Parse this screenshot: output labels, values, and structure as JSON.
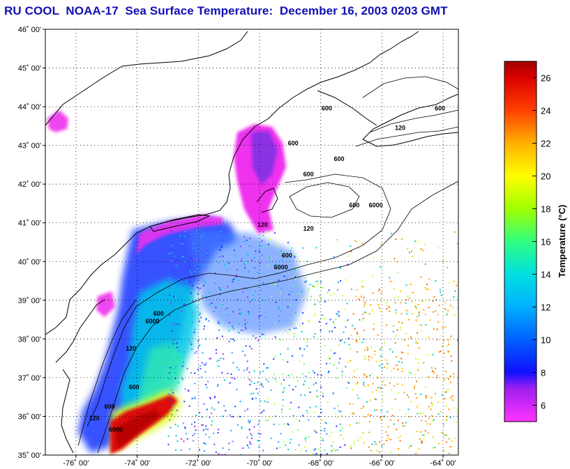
{
  "title": "RU COOL  NOAA-17  Sea Surface Temperature:  December 16, 2003 0203 GMT",
  "map": {
    "lat_ticks": [
      {
        "value": 46,
        "label": "46˚ 00'"
      },
      {
        "value": 45,
        "label": "45˚ 00'"
      },
      {
        "value": 44,
        "label": "44˚ 00'"
      },
      {
        "value": 43,
        "label": "43˚ 00'"
      },
      {
        "value": 42,
        "label": "42˚ 00'"
      },
      {
        "value": 41,
        "label": "41˚ 00'"
      },
      {
        "value": 40,
        "label": "40˚ 00'"
      },
      {
        "value": 39,
        "label": "39˚ 00'"
      },
      {
        "value": 38,
        "label": "38˚ 00'"
      },
      {
        "value": 37,
        "label": "37˚ 00'"
      },
      {
        "value": 36,
        "label": "36˚ 00'"
      },
      {
        "value": 35,
        "label": "35˚ 00'"
      }
    ],
    "lon_ticks": [
      {
        "value": -76,
        "label": "-76˚ 00'"
      },
      {
        "value": -74,
        "label": "-74˚ 00'"
      },
      {
        "value": -72,
        "label": "-72˚ 00'"
      },
      {
        "value": -70,
        "label": "-70˚ 00'"
      },
      {
        "value": -68,
        "label": "-68˚ 00'"
      },
      {
        "value": -66,
        "label": "-66˚ 00'"
      },
      {
        "value": -64,
        "label": "-64˚ 00'"
      }
    ],
    "lat_range": [
      35,
      46
    ],
    "lon_range": [
      -77,
      -63.5
    ],
    "contour_labels": [
      {
        "text": "600",
        "lon": -67.8,
        "lat": 43.9
      },
      {
        "text": "600",
        "lon": -64.1,
        "lat": 43.9
      },
      {
        "text": "600",
        "lon": -68.9,
        "lat": 43.0
      },
      {
        "text": "600",
        "lon": -67.4,
        "lat": 42.6
      },
      {
        "text": "600",
        "lon": -68.4,
        "lat": 42.2
      },
      {
        "text": "600",
        "lon": -66.9,
        "lat": 41.4
      },
      {
        "text": "6000",
        "lon": -66.2,
        "lat": 41.4
      },
      {
        "text": "600",
        "lon": -69.1,
        "lat": 40.1
      },
      {
        "text": "6000",
        "lon": -69.3,
        "lat": 39.8
      },
      {
        "text": "120",
        "lon": -68.4,
        "lat": 40.8
      },
      {
        "text": "120",
        "lon": -69.9,
        "lat": 40.9
      },
      {
        "text": "120",
        "lon": -65.4,
        "lat": 43.4
      },
      {
        "text": "600",
        "lon": -73.3,
        "lat": 38.6
      },
      {
        "text": "6000",
        "lon": -73.5,
        "lat": 38.4
      },
      {
        "text": "120",
        "lon": -74.2,
        "lat": 37.7
      },
      {
        "text": "600",
        "lon": -74.1,
        "lat": 36.7
      },
      {
        "text": "600",
        "lon": -74.9,
        "lat": 36.2
      },
      {
        "text": "6000",
        "lon": -74.7,
        "lat": 35.6
      },
      {
        "text": "120",
        "lon": -75.4,
        "lat": 35.9
      }
    ]
  },
  "colorbar": {
    "title": "Temperature (°C)",
    "range": [
      5,
      27
    ],
    "ticks": [
      {
        "value": 26,
        "label": "26"
      },
      {
        "value": 24,
        "label": "24"
      },
      {
        "value": 22,
        "label": "22"
      },
      {
        "value": 20,
        "label": "20"
      },
      {
        "value": 18,
        "label": "18"
      },
      {
        "value": 16,
        "label": "16"
      },
      {
        "value": 14,
        "label": "14"
      },
      {
        "value": 12,
        "label": "12"
      },
      {
        "value": 10,
        "label": "10"
      },
      {
        "value": 8,
        "label": "8"
      },
      {
        "value": 6,
        "label": "6"
      }
    ],
    "stops": [
      {
        "value": 5,
        "color": "#ff33ff"
      },
      {
        "value": 7,
        "color": "#a020f0"
      },
      {
        "value": 8,
        "color": "#1010ff"
      },
      {
        "value": 10,
        "color": "#0060ff"
      },
      {
        "value": 12,
        "color": "#00b0ff"
      },
      {
        "value": 14,
        "color": "#00e0e0"
      },
      {
        "value": 16,
        "color": "#30ff80"
      },
      {
        "value": 18,
        "color": "#a0ff00"
      },
      {
        "value": 20,
        "color": "#ffff00"
      },
      {
        "value": 22,
        "color": "#ffb000"
      },
      {
        "value": 24,
        "color": "#ff4000"
      },
      {
        "value": 26,
        "color": "#dd0000"
      },
      {
        "value": 27,
        "color": "#a00000"
      }
    ]
  },
  "colors": {
    "title": "#1010b0",
    "coast": "#000000",
    "grid": "#000000"
  }
}
